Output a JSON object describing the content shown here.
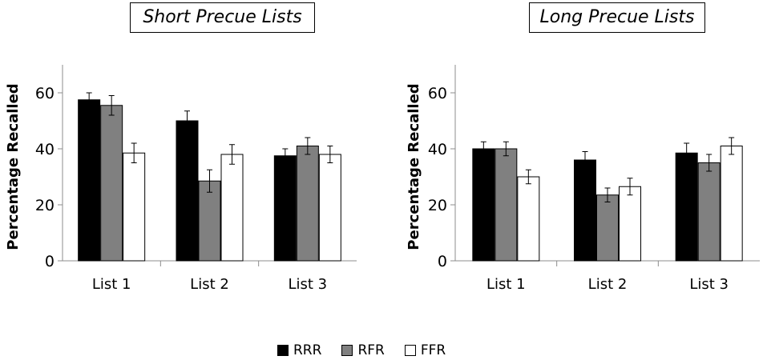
{
  "colors": {
    "RRR": "#000000",
    "RFR": "#808080",
    "FFR": "#ffffff"
  },
  "legend": [
    {
      "name": "RRR",
      "color": "#000000"
    },
    {
      "name": "RFR",
      "color": "#808080"
    },
    {
      "name": "FFR",
      "color": "#ffffff"
    }
  ],
  "chart_data": [
    {
      "type": "bar",
      "title": "Short Precue Lists",
      "ylabel": "Percentage Recalled",
      "xlabel": "",
      "ylim": [
        0,
        70
      ],
      "yticks": [
        "0",
        "20",
        "40",
        "60"
      ],
      "categories": [
        "List 1",
        "List 2",
        "List 3"
      ],
      "series": [
        {
          "name": "RRR",
          "values": [
            57.5,
            50,
            37.5
          ],
          "errors": [
            2.5,
            3.5,
            2.5
          ]
        },
        {
          "name": "RFR",
          "values": [
            55.5,
            28.5,
            41
          ],
          "errors": [
            3.5,
            4,
            3
          ]
        },
        {
          "name": "FFR",
          "values": [
            38.5,
            38,
            38
          ],
          "errors": [
            3.5,
            3.5,
            3
          ]
        }
      ]
    },
    {
      "type": "bar",
      "title": "Long Precue Lists",
      "ylabel": "Percentage Recalled",
      "xlabel": "",
      "ylim": [
        0,
        70
      ],
      "yticks": [
        "0",
        "20",
        "40",
        "60"
      ],
      "categories": [
        "List 1",
        "List 2",
        "List 3"
      ],
      "series": [
        {
          "name": "RRR",
          "values": [
            40,
            36,
            38.5
          ],
          "errors": [
            2.5,
            3,
            3.5
          ]
        },
        {
          "name": "RFR",
          "values": [
            40,
            23.5,
            35
          ],
          "errors": [
            2.5,
            2.5,
            3
          ]
        },
        {
          "name": "FFR",
          "values": [
            30,
            26.5,
            41
          ],
          "errors": [
            2.5,
            3,
            3
          ]
        }
      ]
    }
  ]
}
